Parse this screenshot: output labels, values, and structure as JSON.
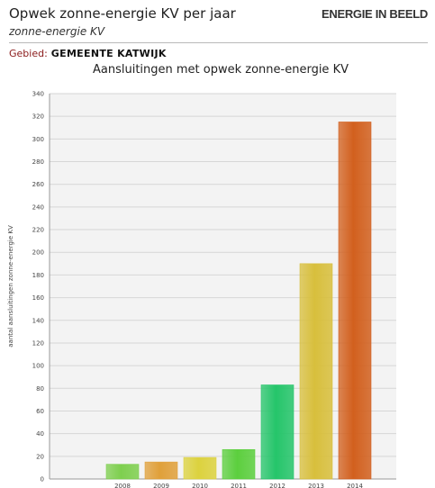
{
  "header": {
    "title": "Opwek zonne-energie KV per jaar",
    "brand": "ENERGIE IN BEELD",
    "subtitle": "zonne-energie KV",
    "area_label": "Gebied:",
    "area_value": "GEMEENTE KATWIJK"
  },
  "colors": {
    "bar_colors": [
      "#7ecf4e",
      "#e0a03a",
      "#dcd23e",
      "#5ccf3e",
      "#25c56a",
      "#d8bf3c",
      "#d2601e"
    ]
  },
  "chart_data": {
    "type": "bar",
    "title": "Aansluitingen met opwek zonne-energie KV",
    "xlabel": "",
    "ylabel": "aantal aansluitingen zonne-energie KV",
    "categories": [
      "2008",
      "2009",
      "2010",
      "2011",
      "2012",
      "2013",
      "2014"
    ],
    "values": [
      13,
      15,
      19,
      26,
      83,
      190,
      315
    ],
    "ylim": [
      0,
      340
    ],
    "yticks": [
      0,
      20,
      40,
      60,
      80,
      100,
      120,
      140,
      160,
      180,
      200,
      220,
      240,
      260,
      280,
      300,
      320,
      340
    ],
    "grid": true,
    "legend": "none"
  }
}
